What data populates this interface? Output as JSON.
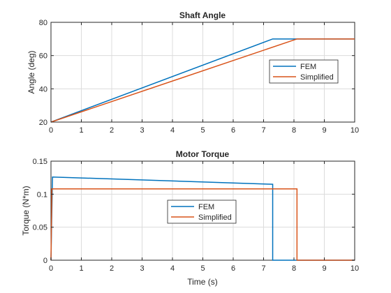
{
  "colors": {
    "fem": "#0072BD",
    "simplified": "#D95319"
  },
  "chart_data": [
    {
      "type": "line",
      "title": "Shaft Angle",
      "xlabel": "",
      "ylabel": "Angle (deg)",
      "xlim": [
        0,
        10
      ],
      "ylim": [
        20,
        80
      ],
      "xticks": [
        "0",
        "1",
        "2",
        "3",
        "4",
        "5",
        "6",
        "7",
        "8",
        "9",
        "10"
      ],
      "yticks": [
        "20",
        "40",
        "60",
        "80"
      ],
      "grid": true,
      "legend_placement": "right",
      "series": [
        {
          "name": "FEM",
          "color_key": "fem",
          "x": [
            0,
            7.3,
            8.1,
            10
          ],
          "y": [
            20,
            70,
            70,
            70
          ]
        },
        {
          "name": "Simplified",
          "color_key": "simplified",
          "x": [
            0,
            8.1,
            10
          ],
          "y": [
            20,
            70,
            70
          ]
        }
      ]
    },
    {
      "type": "line",
      "title": "Motor Torque",
      "xlabel": "Time (s)",
      "ylabel": "Torque (N*m)",
      "xlim": [
        0,
        10
      ],
      "ylim": [
        0,
        0.15
      ],
      "xticks": [
        "0",
        "1",
        "2",
        "3",
        "4",
        "5",
        "6",
        "7",
        "8",
        "9",
        "10"
      ],
      "yticks": [
        "0",
        "0.05",
        "0.1",
        "0.15"
      ],
      "grid": true,
      "legend_placement": "center",
      "series": [
        {
          "name": "FEM",
          "color_key": "fem",
          "x": [
            0,
            0.05,
            7.3,
            7.3,
            10
          ],
          "y": [
            0,
            0.126,
            0.115,
            0,
            0
          ]
        },
        {
          "name": "Simplified",
          "color_key": "simplified",
          "x": [
            0,
            0.03,
            8.1,
            8.1,
            10
          ],
          "y": [
            0,
            0.108,
            0.108,
            0,
            0
          ]
        }
      ]
    }
  ]
}
